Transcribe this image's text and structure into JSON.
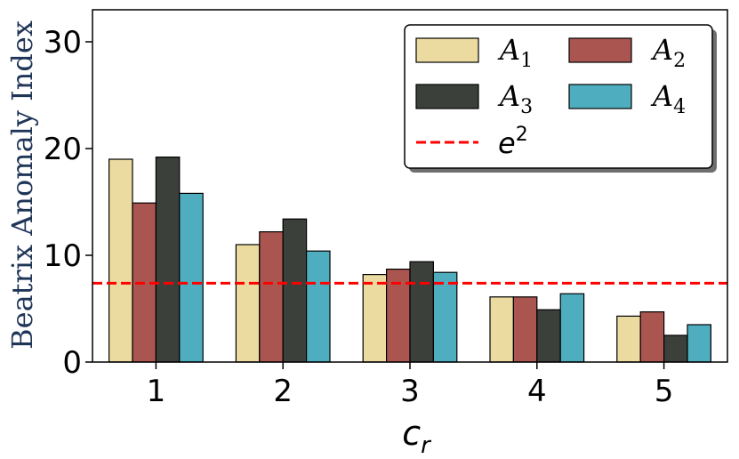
{
  "chart_data": {
    "type": "bar",
    "title": "",
    "xlabel_main": "c",
    "xlabel_sub": "r",
    "ylabel": "Beatrix Anomaly Index",
    "ylabel_color": "#1f3557",
    "ylim": [
      0,
      33
    ],
    "yticks": [
      0,
      10,
      20,
      30
    ],
    "categories": [
      "1",
      "2",
      "3",
      "4",
      "5"
    ],
    "series": [
      {
        "name": "A",
        "sub": "1",
        "color": "#ecdba0",
        "values": [
          19.0,
          11.0,
          8.2,
          6.1,
          4.3
        ]
      },
      {
        "name": "A",
        "sub": "2",
        "color": "#ab5550",
        "values": [
          14.9,
          12.2,
          8.7,
          6.1,
          4.7
        ]
      },
      {
        "name": "A",
        "sub": "3",
        "color": "#3b403b",
        "values": [
          19.2,
          13.4,
          9.4,
          4.9,
          2.5
        ]
      },
      {
        "name": "A",
        "sub": "4",
        "color": "#4eaebf",
        "values": [
          15.8,
          10.4,
          8.4,
          6.4,
          3.5
        ]
      }
    ],
    "reference_line": {
      "label_main": "e",
      "label_sup": "2",
      "value": 7.389,
      "color": "#ff0000",
      "style": "dashed"
    },
    "legend_position": "top-right",
    "grid": false
  }
}
